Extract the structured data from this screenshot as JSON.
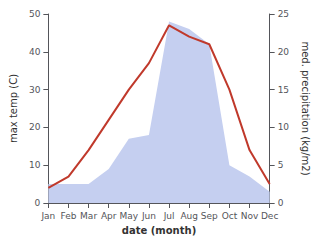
{
  "chart_data": {
    "type": "line",
    "xlabel": "date (month)",
    "ylabel": "max temp (C)",
    "y2label": "med. precipitation (kg/m2)",
    "categories": [
      "Jan",
      "Feb",
      "Mar",
      "Apr",
      "May",
      "Jun",
      "Jul",
      "Aug",
      "Sep",
      "Oct",
      "Nov",
      "Dec"
    ],
    "series": [
      {
        "type": "area",
        "color": "#c5cff0",
        "axis": "y2",
        "values": [
          2.5,
          2.5,
          2.5,
          4.5,
          8.5,
          9.0,
          24,
          23,
          21,
          5,
          3.5,
          1.5
        ]
      },
      {
        "type": "line",
        "color": "#c0392b",
        "values": [
          4,
          7,
          14,
          22,
          30,
          37,
          47,
          44,
          42,
          30,
          14,
          5
        ]
      }
    ],
    "ylim": [
      0,
      50
    ],
    "yticks": [
      0,
      10,
      20,
      30,
      40,
      50
    ],
    "y2lim": [
      0,
      25
    ],
    "y2ticks": [
      0,
      5,
      10,
      15,
      20,
      25
    ],
    "grid": false
  }
}
